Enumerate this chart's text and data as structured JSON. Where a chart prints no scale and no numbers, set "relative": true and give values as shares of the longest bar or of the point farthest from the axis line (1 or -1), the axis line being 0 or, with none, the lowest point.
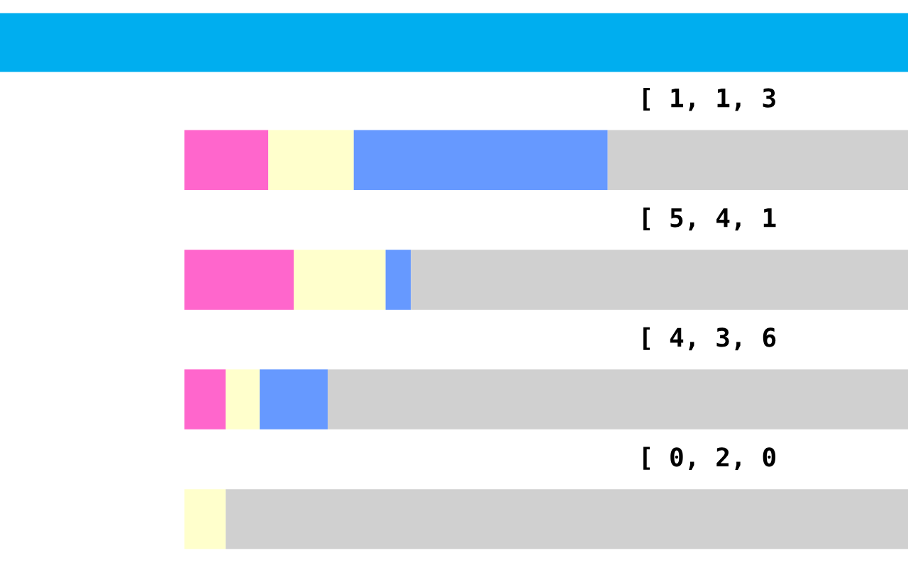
{
  "chart_data": {
    "type": "bar",
    "orientation": "horizontal",
    "stacked": true,
    "relative": true,
    "grid": false,
    "legend": false,
    "categories": [
      null,
      null,
      null,
      null
    ],
    "series": [
      {
        "color": "#ff66cc",
        "values": [
          0.116,
          0.151,
          0.057,
          0
        ]
      },
      {
        "color": "#ffffcc",
        "values": [
          0.118,
          0.127,
          0.047,
          0.057
        ]
      },
      {
        "color": "#6699ff",
        "values": [
          0.351,
          0.035,
          0.094,
          0
        ]
      },
      {
        "color": "#d0d0d0",
        "values": [
          0.415,
          0.687,
          0.802,
          0.943
        ]
      }
    ],
    "annotations": [
      "[ 1, 1, 3",
      "[ 5, 4, 1",
      "[ 4, 3, 6",
      "[ 0, 2, 0"
    ]
  }
}
